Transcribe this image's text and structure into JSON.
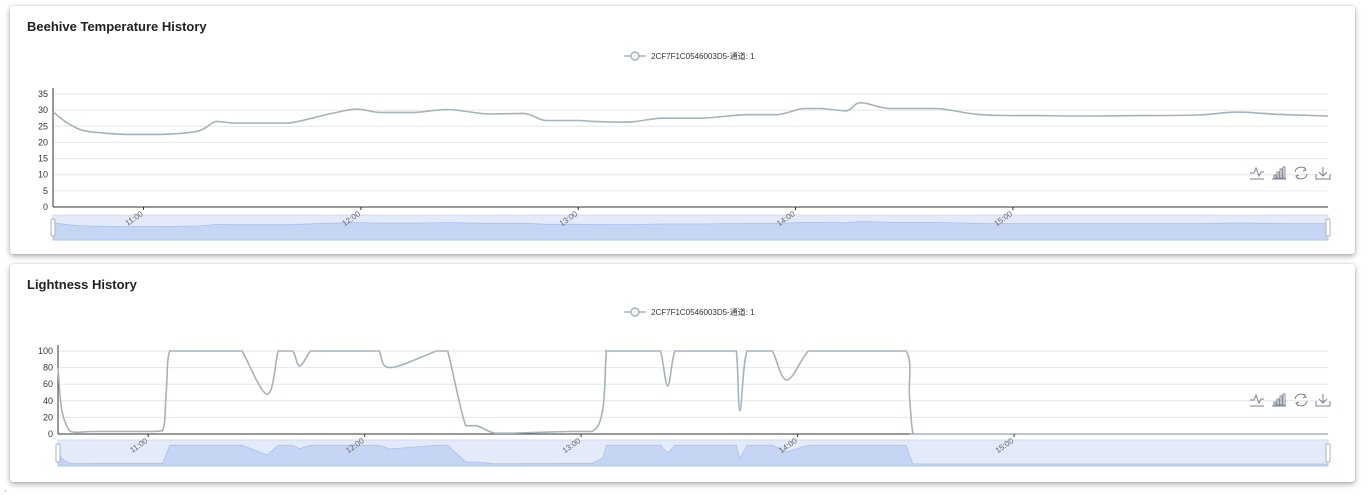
{
  "charts": [
    {
      "id": "temp",
      "title": "Beehive Temperature History",
      "legend": "2CF7F1C0546003D5-通道: 1",
      "line_color": "#a5b3bb",
      "accent_color": "#5470c6",
      "toolbox": [
        "line-chart-icon",
        "bar-chart-icon",
        "restore-icon",
        "download-icon"
      ]
    },
    {
      "id": "light",
      "title": "Lightness History",
      "legend": "2CF7F1C0546003D5-通道: 1",
      "line_color": "#a5b3bb",
      "accent_color": "#5470c6",
      "toolbox": [
        "line-chart-icon",
        "bar-chart-icon",
        "restore-icon",
        "download-icon"
      ]
    }
  ],
  "chart_data": [
    {
      "type": "line",
      "title": "Beehive Temperature History",
      "legend_placement": "top-center",
      "grid": true,
      "xlabel": "",
      "ylabel": "",
      "ylim": [
        0,
        35
      ],
      "yticks": [
        0,
        5,
        10,
        15,
        20,
        25,
        30,
        35
      ],
      "xlim": [
        "10:35",
        "16:27"
      ],
      "xticks": [
        "11:00",
        "12:00",
        "13:00",
        "14:00",
        "15:00"
      ],
      "x": [
        "10:35",
        "10:39",
        "10:43",
        "10:48",
        "10:55",
        "11:05",
        "11:15",
        "11:20",
        "11:25",
        "11:30",
        "11:40",
        "11:52",
        "11:59",
        "12:05",
        "12:15",
        "12:24",
        "12:35",
        "12:45",
        "12:51",
        "13:00",
        "13:04",
        "13:12",
        "13:16",
        "13:23",
        "13:34",
        "13:46",
        "13:55",
        "14:02",
        "14:07",
        "14:14",
        "14:18",
        "14:26",
        "14:39",
        "14:50",
        "15:00",
        "15:07",
        "15:20",
        "15:35",
        "15:51",
        "16:02",
        "16:13",
        "16:27"
      ],
      "series": [
        {
          "name": "2CF7F1C0546003D5-通道: 1",
          "values": [
            29.5,
            26,
            23.8,
            23,
            22.5,
            22.5,
            23.5,
            26.5,
            26,
            26,
            26,
            29,
            30.3,
            29.3,
            29.3,
            30.2,
            28.8,
            29,
            26.8,
            26.8,
            26.5,
            26.3,
            26.5,
            27.5,
            27.5,
            28.6,
            28.6,
            30.5,
            30.5,
            29.8,
            32.3,
            30.5,
            30.5,
            28.7,
            28.3,
            28.3,
            28.2,
            28.3,
            28.5,
            29.4,
            28.7,
            28.2
          ]
        }
      ]
    },
    {
      "type": "line",
      "title": "Lightness History",
      "legend_placement": "top-center",
      "grid": true,
      "xlabel": "",
      "ylabel": "",
      "ylim": [
        0,
        100
      ],
      "yticks": [
        0,
        20,
        40,
        60,
        80,
        100
      ],
      "xlim": [
        "10:35",
        "16:27"
      ],
      "xticks": [
        "11:00",
        "12:00",
        "13:00",
        "14:00",
        "15:00"
      ],
      "x": [
        "10:35",
        "10:36",
        "10:38",
        "10:40",
        "10:45",
        "10:55",
        "11:00",
        "11:04",
        "11:05",
        "11:06",
        "11:10",
        "11:24",
        "11:25",
        "11:26",
        "11:33",
        "11:36",
        "11:37",
        "11:40",
        "11:42",
        "11:45",
        "11:47",
        "11:50",
        "12:02",
        "12:04",
        "12:07",
        "12:20",
        "12:22",
        "12:23",
        "12:28",
        "12:31",
        "12:36",
        "12:41",
        "12:56",
        "13:03",
        "13:06",
        "13:07",
        "13:08",
        "13:20",
        "13:22",
        "13:24",
        "13:26",
        "13:29",
        "13:41",
        "13:43",
        "13:44",
        "13:46",
        "13:51",
        "13:53",
        "13:57",
        "14:03",
        "14:07",
        "14:08",
        "14:10",
        "14:20",
        "14:30",
        "14:31",
        "14:32",
        "14:34",
        "15:00",
        "16:00",
        "16:27"
      ],
      "series": [
        {
          "name": "2CF7F1C0546003D5-通道: 1",
          "values": [
            80,
            30,
            5,
            2,
            3,
            3,
            3,
            4,
            50,
            100,
            100,
            100,
            100,
            100,
            48,
            100,
            100,
            100,
            82,
            100,
            100,
            100,
            100,
            100,
            80,
            100,
            100,
            100,
            10,
            10,
            1,
            1,
            3,
            3,
            30,
            100,
            100,
            100,
            100,
            58,
            100,
            100,
            100,
            100,
            28,
            100,
            100,
            100,
            65,
            100,
            100,
            100,
            100,
            100,
            100,
            45,
            1,
            0,
            0,
            0,
            0
          ]
        }
      ]
    }
  ]
}
